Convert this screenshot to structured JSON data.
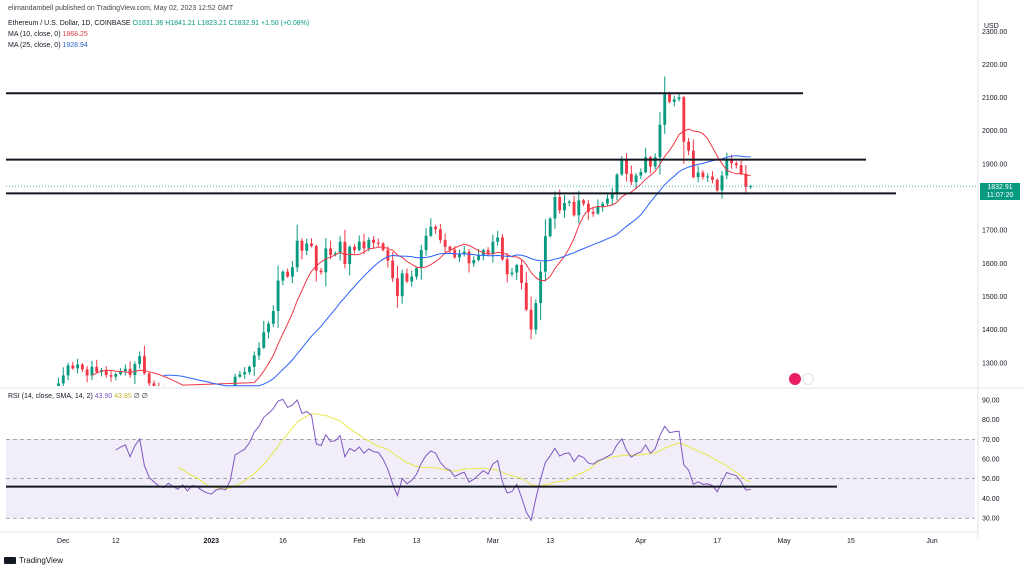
{
  "header": {
    "published": "elimandambell published on TradingView.com, May 02, 2023 12:52 GMT",
    "symbol": "Ethereum / U.S. Dollar, 1D, COINBASE",
    "ohlc": {
      "o": "O1831.36",
      "h": "H1841.21",
      "l": "L1823.21",
      "c": "C1832.91",
      "chg": "+1.50 (+0.08%)"
    },
    "ma10": {
      "label": "MA (10, close, 0)",
      "value": "1868.25"
    },
    "ma25": {
      "label": "MA (25, close, 0)",
      "value": "1928.94"
    },
    "rsi": {
      "label": "RSI (14, close, SMA, 14, 2)",
      "v1": "43.90",
      "v2": "43.85",
      "v3": "∅ ∅"
    }
  },
  "price_tag": {
    "price": "1832.91",
    "countdown": "11:07:20"
  },
  "footer": {
    "logo": "TradingView"
  },
  "colors": {
    "up": "#089981",
    "down": "#f23645",
    "ma10": "#f23645",
    "ma25": "#2962ff",
    "rsi": "#7e57c2",
    "rsi_ma": "#e8e84a",
    "line": "#131722"
  },
  "chart_data": [
    {
      "type": "candlestick",
      "title": "Ethereum / U.S. Dollar, 1D, COINBASE",
      "currency": "USD",
      "ylim": [
        1230,
        2340
      ],
      "yticks": [
        1300,
        1400,
        1500,
        1600,
        1700,
        1800,
        1900,
        2000,
        2100,
        2200,
        2300
      ],
      "ytick_labels": [
        "1300.00",
        "1400.00",
        "1500.00",
        "1600.00",
        "1700.00",
        "1800.00",
        "1900.00",
        "2000.00",
        "2100.00",
        "2200.00",
        "2300.00"
      ],
      "xticks": [
        "Dec",
        "12",
        "2023",
        "16",
        "Feb",
        "13",
        "Mar",
        "13",
        "Apr",
        "17",
        "May",
        "15",
        "Jun"
      ],
      "xtick_dates": [
        "2022-12-01",
        "2022-12-12",
        "2023-01-01",
        "2023-01-16",
        "2023-02-01",
        "2023-02-13",
        "2023-03-01",
        "2023-03-13",
        "2023-04-01",
        "2023-04-17",
        "2023-05-01",
        "2023-05-15",
        "2023-06-01"
      ],
      "x_range": [
        "2022-11-19",
        "2023-06-10"
      ],
      "horizontal_lines": [
        2113,
        1913,
        1811
      ],
      "last_price": 1832.91,
      "series": [
        {
          "name": "ETHUSD",
          "closes": [
            1202,
            1218,
            1238,
            1262,
            1292,
            1283,
            1295,
            1280,
            1262,
            1288,
            1272,
            1278,
            1263,
            1258,
            1266,
            1275,
            1282,
            1263,
            1296,
            1320,
            1268,
            1238,
            1226,
            1215,
            1210,
            1220,
            1212,
            1205,
            1214,
            1200,
            1210,
            1208,
            1200,
            1195,
            1192,
            1198,
            1200,
            1198,
            1211,
            1258,
            1265,
            1272,
            1288,
            1322,
            1345,
            1392,
            1418,
            1456,
            1548,
            1575,
            1560,
            1588,
            1668,
            1638,
            1660,
            1652,
            1578,
            1573,
            1645,
            1625,
            1630,
            1665,
            1598,
            1650,
            1640,
            1666,
            1645,
            1671,
            1662,
            1660,
            1640,
            1608,
            1555,
            1501,
            1570,
            1545,
            1560,
            1586,
            1640,
            1683,
            1710,
            1703,
            1670,
            1650,
            1641,
            1618,
            1628,
            1635,
            1600,
            1610,
            1625,
            1640,
            1630,
            1665,
            1678,
            1612,
            1567,
            1572,
            1595,
            1541,
            1460,
            1400,
            1480,
            1575,
            1682,
            1735,
            1800,
            1760,
            1782,
            1786,
            1745,
            1790,
            1780,
            1755,
            1750,
            1770,
            1780,
            1795,
            1810,
            1868,
            1910,
            1870,
            1845,
            1865,
            1875,
            1920,
            1892,
            1920,
            2018,
            2110,
            2087,
            2095,
            2101,
            1967,
            1940,
            1860,
            1874,
            1860,
            1862,
            1852,
            1820,
            1865,
            1910,
            1902,
            1896,
            1870,
            1831,
            1833
          ]
        },
        {
          "name": "MA (10, close, 0)",
          "color": "#f23645"
        },
        {
          "name": "MA (25, close, 0)",
          "color": "#2962ff"
        }
      ]
    },
    {
      "type": "line",
      "title": "RSI (14, close, SMA, 14, 2)",
      "ylim": [
        25,
        95
      ],
      "yticks": [
        30,
        40,
        50,
        60,
        70,
        80,
        90
      ],
      "ytick_labels": [
        "30.00",
        "40.00",
        "50.00",
        "60.00",
        "70.00",
        "80.00",
        "90.00"
      ],
      "bands": [
        30,
        70
      ],
      "midline": 50,
      "horizontal_lines": [
        46
      ],
      "last_values": [
        43.9,
        43.85
      ]
    }
  ]
}
